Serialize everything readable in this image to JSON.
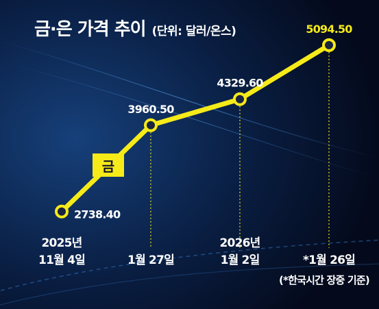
{
  "title": "금·은 가격 추이",
  "unit": "(단위: 달러/온스)",
  "note": "(*한국시간 장중 기준)",
  "colors": {
    "line": "#f6ea19",
    "background": "#050b1e",
    "text": "#ffffff"
  },
  "chart_data": {
    "type": "line",
    "title": "금·은 가격 추이",
    "series": [
      {
        "name": "금",
        "values": [
          2738.4,
          3960.5,
          4329.6,
          5094.5
        ]
      }
    ],
    "categories": [
      "2025년 11월 4일",
      "1월 27일",
      "2026년 1월 2일",
      "*1월 26일"
    ],
    "value_labels": [
      "2738.40",
      "3960.50",
      "4329.60",
      "5094.50"
    ],
    "date_labels": [
      [
        "2025년",
        "11월 4일"
      ],
      [
        "1월 27일"
      ],
      [
        "2026년",
        "1월 2일"
      ],
      [
        "*1월 26일"
      ]
    ],
    "ylim": [
      2600,
      5200
    ],
    "grid": false,
    "legend": "left-middle"
  }
}
